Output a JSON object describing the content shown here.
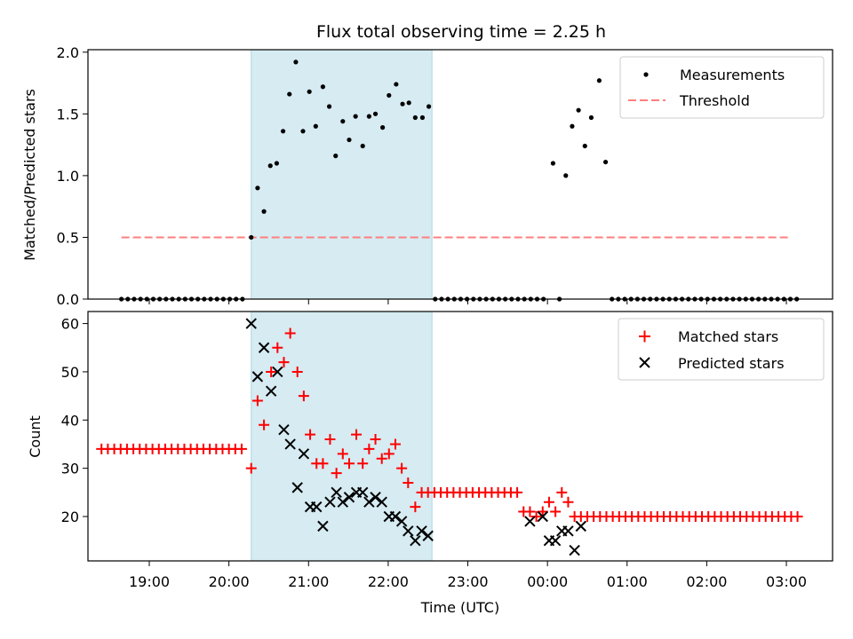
{
  "title": "Flux total observing time = 2.25 h",
  "colors": {
    "span": "#add8e6",
    "measurement": "#000000",
    "threshold": "#ff7f7f",
    "matched": "#ff0000",
    "predicted": "#000000"
  },
  "chart_data": [
    {
      "type": "scatter",
      "ylabel": "Matched/Predicted stars",
      "xlim": [
        18.23,
        27.58
      ],
      "ylim": [
        0,
        2.02
      ],
      "yticks": [
        0.0,
        0.5,
        1.0,
        1.5,
        2.0
      ],
      "ytick_labels": [
        "0.0",
        "0.5",
        "1.0",
        "1.5",
        "2.0"
      ],
      "highlight_span": [
        20.28,
        22.55
      ],
      "legend": {
        "placement": "upper right",
        "entries": [
          "Measurements",
          "Threshold"
        ]
      },
      "threshold": {
        "name": "Threshold",
        "y": 0.5,
        "x": [
          18.65,
          27.05
        ]
      },
      "series": [
        {
          "name": "Measurements",
          "x": [
            18.65,
            18.73,
            18.81,
            18.89,
            18.97,
            19.05,
            19.13,
            19.21,
            19.29,
            19.37,
            19.45,
            19.53,
            19.61,
            19.69,
            19.77,
            19.85,
            19.93,
            20.01,
            20.09,
            20.17,
            20.28,
            20.36,
            20.44,
            20.52,
            20.6,
            20.68,
            20.76,
            20.84,
            20.93,
            21.01,
            21.09,
            21.18,
            21.26,
            21.34,
            21.43,
            21.51,
            21.59,
            21.68,
            21.76,
            21.84,
            21.93,
            22.01,
            22.1,
            22.18,
            22.26,
            22.34,
            22.43,
            22.51,
            22.59,
            22.67,
            22.75,
            22.83,
            22.91,
            22.99,
            23.07,
            23.15,
            23.23,
            23.31,
            23.39,
            23.47,
            23.55,
            23.63,
            23.71,
            23.79,
            23.87,
            23.95,
            24.07,
            24.15,
            24.23,
            24.31,
            24.39,
            24.47,
            24.55,
            24.65,
            24.73,
            24.81,
            24.89,
            24.97,
            25.05,
            25.13,
            25.21,
            25.29,
            25.37,
            25.45,
            25.53,
            25.61,
            25.69,
            25.77,
            25.85,
            25.93,
            26.01,
            26.09,
            26.17,
            26.25,
            26.33,
            26.41,
            26.49,
            26.57,
            26.65,
            26.73,
            26.81,
            26.89,
            26.97,
            27.05,
            27.13
          ],
          "y": [
            0,
            0,
            0,
            0,
            0,
            0,
            0,
            0,
            0,
            0,
            0,
            0,
            0,
            0,
            0,
            0,
            0,
            0,
            0,
            0,
            0.5,
            0.9,
            0.71,
            1.08,
            1.1,
            1.36,
            1.66,
            1.92,
            1.36,
            1.68,
            1.4,
            1.72,
            1.56,
            1.16,
            1.44,
            1.29,
            1.48,
            1.24,
            1.48,
            1.5,
            1.39,
            1.65,
            1.74,
            1.58,
            1.59,
            1.47,
            1.47,
            1.56,
            0,
            0,
            0,
            0,
            0,
            0,
            0,
            0,
            0,
            0,
            0,
            0,
            0,
            0,
            0,
            0,
            0,
            0,
            1.1,
            0,
            1.0,
            1.4,
            1.53,
            1.24,
            1.47,
            1.77,
            1.11,
            0,
            0,
            0,
            0,
            0,
            0,
            0,
            0,
            0,
            0,
            0,
            0,
            0,
            0,
            0,
            0,
            0,
            0,
            0,
            0,
            0,
            0,
            0,
            0,
            0,
            0,
            0,
            0,
            0,
            0
          ]
        }
      ]
    },
    {
      "type": "scatter",
      "xlabel": "Time (UTC)",
      "ylabel": "Count",
      "xlim": [
        18.23,
        27.58
      ],
      "ylim": [
        10.8,
        62.5
      ],
      "yticks": [
        20,
        30,
        40,
        50,
        60
      ],
      "ytick_labels": [
        "20",
        "30",
        "40",
        "50",
        "60"
      ],
      "xticks": [
        19,
        20,
        21,
        22,
        23,
        24,
        25,
        26,
        27
      ],
      "xtick_labels": [
        "19:00",
        "20:00",
        "21:00",
        "22:00",
        "23:00",
        "00:00",
        "01:00",
        "02:00",
        "03:00"
      ],
      "highlight_span": [
        20.28,
        22.55
      ],
      "legend": {
        "placement": "upper right",
        "entries": [
          "Matched stars",
          "Predicted stars"
        ]
      },
      "series": [
        {
          "name": "Matched stars",
          "marker": "plus",
          "x": [
            18.4,
            18.48,
            18.56,
            18.64,
            18.72,
            18.8,
            18.88,
            18.96,
            19.04,
            19.12,
            19.2,
            19.28,
            19.36,
            19.44,
            19.52,
            19.6,
            19.68,
            19.76,
            19.84,
            19.92,
            20.0,
            20.08,
            20.16,
            20.28,
            20.36,
            20.44,
            20.53,
            20.61,
            20.69,
            20.77,
            20.86,
            20.94,
            21.02,
            21.1,
            21.18,
            21.27,
            21.35,
            21.43,
            21.51,
            21.6,
            21.68,
            21.76,
            21.84,
            21.92,
            22.01,
            22.09,
            22.17,
            22.25,
            22.34,
            22.42,
            22.5,
            22.58,
            22.66,
            22.74,
            22.82,
            22.9,
            22.98,
            23.06,
            23.14,
            23.22,
            23.3,
            23.38,
            23.46,
            23.54,
            23.62,
            23.7,
            23.78,
            23.86,
            23.94,
            24.02,
            24.1,
            24.18,
            24.26,
            24.34,
            24.42,
            24.5,
            24.58,
            24.66,
            24.74,
            24.82,
            24.9,
            24.98,
            25.06,
            25.14,
            25.22,
            25.3,
            25.38,
            25.46,
            25.54,
            25.62,
            25.7,
            25.78,
            25.86,
            25.94,
            26.02,
            26.1,
            26.18,
            26.26,
            26.34,
            26.42,
            26.5,
            26.58,
            26.66,
            26.74,
            26.82,
            26.9,
            26.98,
            27.06,
            27.14
          ],
          "y": [
            34,
            34,
            34,
            34,
            34,
            34,
            34,
            34,
            34,
            34,
            34,
            34,
            34,
            34,
            34,
            34,
            34,
            34,
            34,
            34,
            34,
            34,
            34,
            30,
            44,
            39,
            50,
            55,
            52,
            58,
            50,
            45,
            37,
            31,
            31,
            36,
            29,
            33,
            31,
            37,
            31,
            34,
            36,
            32,
            33,
            35,
            30,
            27,
            22,
            25,
            25,
            25,
            25,
            25,
            25,
            25,
            25,
            25,
            25,
            25,
            25,
            25,
            25,
            25,
            25,
            21,
            21,
            20,
            21,
            23,
            21,
            25,
            23,
            20,
            20,
            20,
            20,
            20,
            20,
            20,
            20,
            20,
            20,
            20,
            20,
            20,
            20,
            20,
            20,
            20,
            20,
            20,
            20,
            20,
            20,
            20,
            20,
            20,
            20,
            20,
            20,
            20,
            20,
            20,
            20,
            20,
            20,
            20,
            20
          ]
        },
        {
          "name": "Predicted stars",
          "marker": "x",
          "x": [
            20.28,
            20.36,
            20.44,
            20.53,
            20.61,
            20.69,
            20.77,
            20.86,
            20.94,
            21.02,
            21.1,
            21.18,
            21.27,
            21.35,
            21.43,
            21.51,
            21.6,
            21.68,
            21.76,
            21.84,
            21.92,
            22.01,
            22.09,
            22.17,
            22.25,
            22.34,
            22.42,
            22.5,
            23.78,
            23.94,
            24.02,
            24.1,
            24.18,
            24.26,
            24.34,
            24.42
          ],
          "y": [
            60,
            49,
            55,
            46,
            50,
            38,
            35,
            26,
            33,
            22,
            22,
            18,
            23,
            25,
            23,
            24,
            25,
            25,
            23,
            24,
            23,
            20,
            20,
            19,
            17,
            15,
            17,
            16,
            19,
            20,
            15,
            15,
            17,
            17,
            13,
            18
          ]
        }
      ]
    }
  ]
}
